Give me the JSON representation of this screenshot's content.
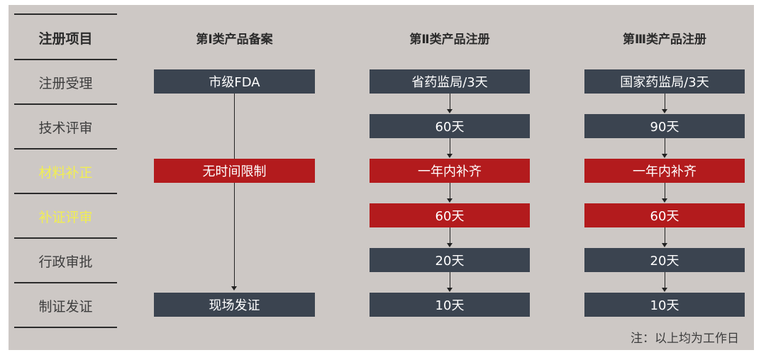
{
  "row_labels": {
    "header": "注册项目",
    "items": [
      "注册受理",
      "技术评审",
      "材料补正",
      "补证评审",
      "行政审批",
      "制证发证"
    ]
  },
  "columns": [
    {
      "title": "第Ⅰ类产品备案",
      "boxes": [
        "市级FDA",
        "无时间限制",
        "现场发证"
      ]
    },
    {
      "title": "第Ⅱ类产品注册",
      "boxes": [
        "省药监局/3天",
        "60天",
        "一年内补齐",
        "60天",
        "20天",
        "10天"
      ]
    },
    {
      "title": "第Ⅲ类产品注册",
      "boxes": [
        "国家药监局/3天",
        "90天",
        "一年内补齐",
        "60天",
        "20天",
        "10天"
      ]
    }
  ],
  "note": "注：以上均为工作日",
  "colors": {
    "background": "#cdc8c5",
    "dark_box": "#3b4450",
    "red_box": "#b31b1d",
    "highlight_label": "#f1ee52"
  }
}
